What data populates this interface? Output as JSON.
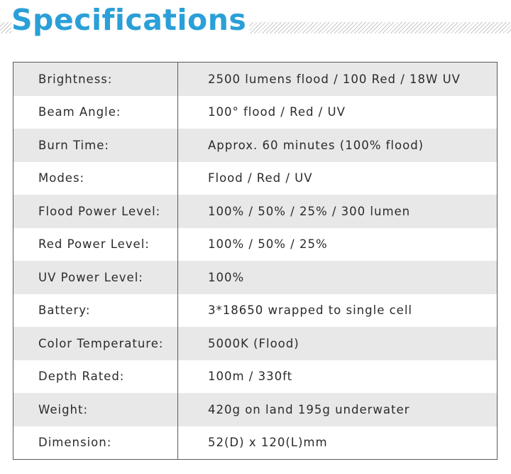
{
  "header": {
    "title": "Specifications"
  },
  "specs": [
    {
      "label": "Brightness:",
      "value": "2500 lumens flood / 100 Red / 18W UV"
    },
    {
      "label": "Beam Angle:",
      "value": "100° flood / Red / UV"
    },
    {
      "label": "Burn Time:",
      "value": "Approx. 60 minutes (100% flood)"
    },
    {
      "label": "Modes:",
      "value": "Flood / Red / UV"
    },
    {
      "label": "Flood Power Level:",
      "value": "100% / 50% / 25% / 300 lumen"
    },
    {
      "label": "Red Power Level:",
      "value": "100% / 50% / 25%"
    },
    {
      "label": "UV Power Level:",
      "value": "100%"
    },
    {
      "label": "Battery:",
      "value": "3*18650  wrapped to single cell"
    },
    {
      "label": "Color Temperature:",
      "value": "5000K  (Flood)"
    },
    {
      "label": "Depth Rated:",
      "value": "100m / 330ft"
    },
    {
      "label": "Weight:",
      "value": "420g on land 195g underwater"
    },
    {
      "label": "Dimension:",
      "value": "52(D) x 120(L)mm"
    }
  ],
  "colors": {
    "title": "#2a9fd8",
    "row_shade": "#e8e8e8",
    "border": "#5a5a5a",
    "text": "#2b2b2b"
  }
}
